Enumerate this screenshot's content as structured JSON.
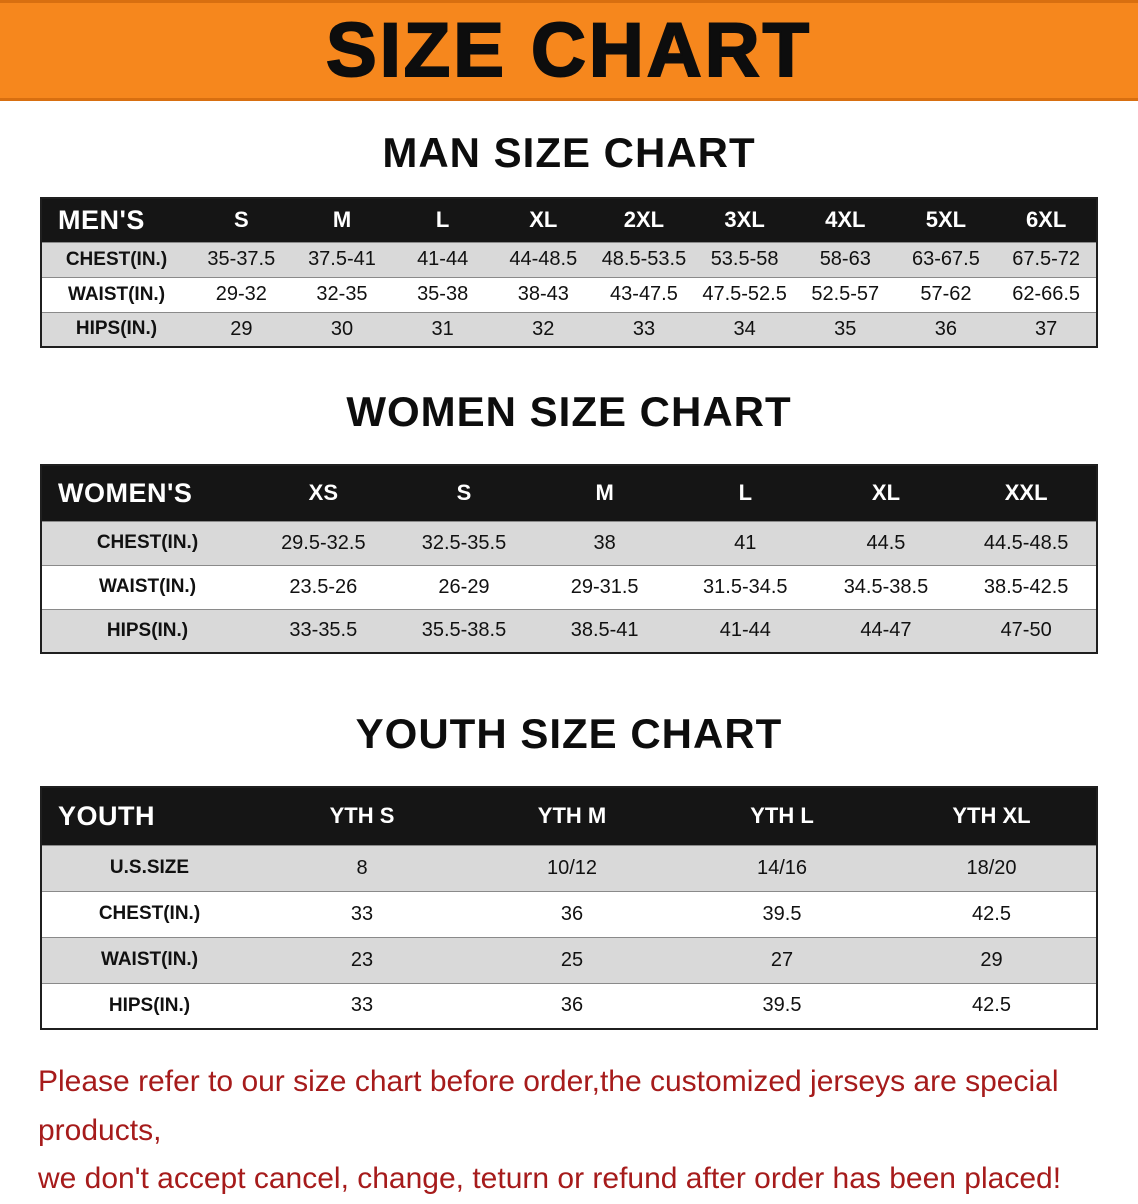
{
  "banner": {
    "title": "SIZE CHART",
    "bg_color": "#F6871D"
  },
  "chart_data": [
    {
      "type": "table",
      "title": "MAN SIZE CHART",
      "header": [
        "MEN'S",
        "S",
        "M",
        "L",
        "XL",
        "2XL",
        "3XL",
        "4XL",
        "5XL",
        "6XL"
      ],
      "rows": [
        [
          "CHEST(IN.)",
          "35-37.5",
          "37.5-41",
          "41-44",
          "44-48.5",
          "48.5-53.5",
          "53.5-58",
          "58-63",
          "63-67.5",
          "67.5-72"
        ],
        [
          "WAIST(IN.)",
          "29-32",
          "32-35",
          "35-38",
          "38-43",
          "43-47.5",
          "47.5-52.5",
          "52.5-57",
          "57-62",
          "62-66.5"
        ],
        [
          "HIPS(IN.)",
          "29",
          "30",
          "31",
          "32",
          "33",
          "34",
          "35",
          "36",
          "37"
        ]
      ]
    },
    {
      "type": "table",
      "title": "WOMEN SIZE CHART",
      "header": [
        "WOMEN'S",
        "XS",
        "S",
        "M",
        "L",
        "XL",
        "XXL"
      ],
      "rows": [
        [
          "CHEST(IN.)",
          "29.5-32.5",
          "32.5-35.5",
          "38",
          "41",
          "44.5",
          "44.5-48.5"
        ],
        [
          "WAIST(IN.)",
          "23.5-26",
          "26-29",
          "29-31.5",
          "31.5-34.5",
          "34.5-38.5",
          "38.5-42.5"
        ],
        [
          "HIPS(IN.)",
          "33-35.5",
          "35.5-38.5",
          "38.5-41",
          "41-44",
          "44-47",
          "47-50"
        ]
      ]
    },
    {
      "type": "table",
      "title": "YOUTH SIZE CHART",
      "header": [
        "YOUTH",
        "YTH S",
        "YTH M",
        "YTH L",
        "YTH XL"
      ],
      "rows": [
        [
          "U.S.SIZE",
          "8",
          "10/12",
          "14/16",
          "18/20"
        ],
        [
          "CHEST(IN.)",
          "33",
          "36",
          "39.5",
          "42.5"
        ],
        [
          "WAIST(IN.)",
          "23",
          "25",
          "27",
          "29"
        ],
        [
          "HIPS(IN.)",
          "33",
          "36",
          "39.5",
          "42.5"
        ]
      ]
    }
  ],
  "footnote": {
    "line1": "Please refer to our size chart before order,the customized jerseys are special products,",
    "line2": "we don't accept cancel, change, teturn or refund after order has been placed!",
    "text_color": "#A61B1B"
  },
  "colors": {
    "banner_bg": "#F6871D",
    "table_header_bg": "#151515",
    "row_shaded": "#D9D9D9",
    "row_plain": "#FFFFFF"
  }
}
